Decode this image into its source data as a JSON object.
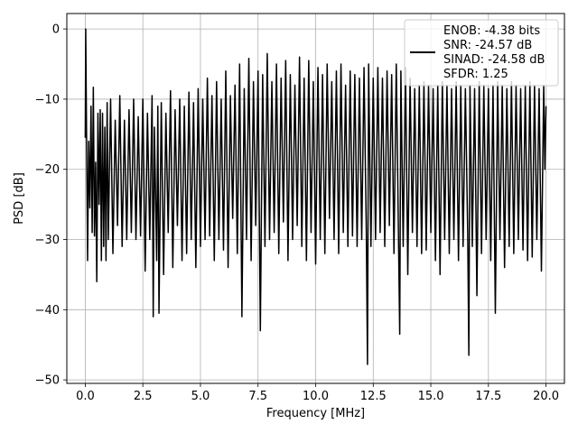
{
  "chart_data": {
    "type": "line",
    "title": "",
    "xlabel": "Frequency [MHz]",
    "ylabel": "PSD [dB]",
    "xlim": [
      -0.8,
      20.8
    ],
    "ylim": [
      -50.5,
      2.2
    ],
    "xticks": [
      0.0,
      2.5,
      5.0,
      7.5,
      10.0,
      12.5,
      15.0,
      17.5,
      20.0
    ],
    "xtick_labels": [
      "0.0",
      "2.5",
      "5.0",
      "7.5",
      "10.0",
      "12.5",
      "15.0",
      "17.5",
      "20.0"
    ],
    "yticks": [
      0,
      -10,
      -20,
      -30,
      -40,
      -50
    ],
    "ytick_labels": [
      "0",
      "−10",
      "−20",
      "−30",
      "−40",
      "−50"
    ],
    "grid": true,
    "line_color": "#000000",
    "legend": {
      "location": "upper right",
      "entries": [
        "ENOB: -4.38 bits",
        "SNR: -24.57 dB",
        "SINAD: -24.58 dB",
        "SFDR: 1.25"
      ]
    },
    "series": [
      {
        "points": [
          [
            0.0,
            -15.5
          ],
          [
            0.02,
            0.0
          ],
          [
            0.05,
            -12.5
          ],
          [
            0.1,
            -33.0
          ],
          [
            0.15,
            -16.0
          ],
          [
            0.2,
            -25.5
          ],
          [
            0.25,
            -11.0
          ],
          [
            0.3,
            -29.0
          ],
          [
            0.35,
            -8.3
          ],
          [
            0.4,
            -29.5
          ],
          [
            0.45,
            -19.0
          ],
          [
            0.5,
            -36.0
          ],
          [
            0.55,
            -12.0
          ],
          [
            0.6,
            -25.0
          ],
          [
            0.65,
            -11.5
          ],
          [
            0.7,
            -33.0
          ],
          [
            0.75,
            -12.0
          ],
          [
            0.8,
            -31.0
          ],
          [
            0.85,
            -14.0
          ],
          [
            0.9,
            -33.0
          ],
          [
            0.95,
            -10.5
          ],
          [
            1.0,
            -30.0
          ],
          [
            1.1,
            -10.0
          ],
          [
            1.2,
            -32.0
          ],
          [
            1.3,
            -13.0
          ],
          [
            1.4,
            -28.0
          ],
          [
            1.5,
            -9.5
          ],
          [
            1.6,
            -31.0
          ],
          [
            1.7,
            -13.0
          ],
          [
            1.8,
            -30.0
          ],
          [
            1.9,
            -11.5
          ],
          [
            2.0,
            -29.0
          ],
          [
            2.1,
            -10.0
          ],
          [
            2.2,
            -30.0
          ],
          [
            2.3,
            -12.5
          ],
          [
            2.4,
            -29.5
          ],
          [
            2.5,
            -10.0
          ],
          [
            2.6,
            -34.5
          ],
          [
            2.7,
            -12.0
          ],
          [
            2.8,
            -30.0
          ],
          [
            2.9,
            -9.5
          ],
          [
            2.95,
            -41.0
          ],
          [
            3.0,
            -14.0
          ],
          [
            3.1,
            -33.0
          ],
          [
            3.15,
            -11.0
          ],
          [
            3.2,
            -40.5
          ],
          [
            3.3,
            -10.5
          ],
          [
            3.4,
            -35.0
          ],
          [
            3.5,
            -12.0
          ],
          [
            3.6,
            -29.0
          ],
          [
            3.7,
            -8.8
          ],
          [
            3.8,
            -34.0
          ],
          [
            3.9,
            -11.5
          ],
          [
            4.0,
            -28.0
          ],
          [
            4.1,
            -10.0
          ],
          [
            4.2,
            -33.0
          ],
          [
            4.3,
            -11.0
          ],
          [
            4.4,
            -32.0
          ],
          [
            4.5,
            -9.0
          ],
          [
            4.6,
            -30.0
          ],
          [
            4.7,
            -10.5
          ],
          [
            4.8,
            -34.0
          ],
          [
            4.9,
            -8.5
          ],
          [
            5.0,
            -31.0
          ],
          [
            5.1,
            -10.0
          ],
          [
            5.2,
            -30.0
          ],
          [
            5.3,
            -7.0
          ],
          [
            5.4,
            -29.5
          ],
          [
            5.5,
            -9.5
          ],
          [
            5.6,
            -33.0
          ],
          [
            5.7,
            -7.5
          ],
          [
            5.8,
            -30.0
          ],
          [
            5.9,
            -10.0
          ],
          [
            6.0,
            -31.5
          ],
          [
            6.1,
            -6.0
          ],
          [
            6.2,
            -34.0
          ],
          [
            6.3,
            -9.5
          ],
          [
            6.4,
            -27.0
          ],
          [
            6.5,
            -8.0
          ],
          [
            6.6,
            -32.0
          ],
          [
            6.7,
            -5.0
          ],
          [
            6.8,
            -41.0
          ],
          [
            6.9,
            -8.5
          ],
          [
            7.0,
            -30.0
          ],
          [
            7.1,
            -4.2
          ],
          [
            7.2,
            -33.0
          ],
          [
            7.3,
            -7.5
          ],
          [
            7.4,
            -28.0
          ],
          [
            7.5,
            -6.0
          ],
          [
            7.6,
            -43.0
          ],
          [
            7.7,
            -6.5
          ],
          [
            7.8,
            -31.0
          ],
          [
            7.9,
            -3.5
          ],
          [
            8.0,
            -30.0
          ],
          [
            8.1,
            -7.5
          ],
          [
            8.2,
            -29.0
          ],
          [
            8.3,
            -5.0
          ],
          [
            8.4,
            -32.0
          ],
          [
            8.5,
            -7.0
          ],
          [
            8.6,
            -27.5
          ],
          [
            8.7,
            -4.5
          ],
          [
            8.8,
            -33.0
          ],
          [
            8.9,
            -6.5
          ],
          [
            9.0,
            -30.0
          ],
          [
            9.1,
            -8.0
          ],
          [
            9.2,
            -28.0
          ],
          [
            9.3,
            -4.0
          ],
          [
            9.4,
            -31.0
          ],
          [
            9.5,
            -7.0
          ],
          [
            9.6,
            -33.0
          ],
          [
            9.7,
            -4.5
          ],
          [
            9.8,
            -29.0
          ],
          [
            9.9,
            -7.5
          ],
          [
            10.0,
            -33.5
          ],
          [
            10.1,
            -5.5
          ],
          [
            10.2,
            -30.0
          ],
          [
            10.3,
            -6.5
          ],
          [
            10.4,
            -32.0
          ],
          [
            10.5,
            -5.0
          ],
          [
            10.6,
            -27.0
          ],
          [
            10.7,
            -7.5
          ],
          [
            10.8,
            -30.0
          ],
          [
            10.9,
            -6.0
          ],
          [
            11.0,
            -32.0
          ],
          [
            11.1,
            -5.0
          ],
          [
            11.2,
            -29.0
          ],
          [
            11.3,
            -8.0
          ],
          [
            11.4,
            -31.0
          ],
          [
            11.5,
            -6.0
          ],
          [
            11.6,
            -29.5
          ],
          [
            11.7,
            -6.5
          ],
          [
            11.8,
            -31.0
          ],
          [
            11.9,
            -7.0
          ],
          [
            12.0,
            -30.0
          ],
          [
            12.1,
            -5.5
          ],
          [
            12.2,
            -29.0
          ],
          [
            12.25,
            -47.8
          ],
          [
            12.3,
            -5.0
          ],
          [
            12.4,
            -31.0
          ],
          [
            12.5,
            -7.0
          ],
          [
            12.6,
            -30.0
          ],
          [
            12.7,
            -5.5
          ],
          [
            12.8,
            -29.0
          ],
          [
            12.9,
            -7.0
          ],
          [
            13.0,
            -31.0
          ],
          [
            13.1,
            -6.0
          ],
          [
            13.2,
            -28.0
          ],
          [
            13.3,
            -6.5
          ],
          [
            13.4,
            -32.0
          ],
          [
            13.5,
            -5.0
          ],
          [
            13.65,
            -43.5
          ],
          [
            13.7,
            -6.0
          ],
          [
            13.8,
            -31.0
          ],
          [
            13.9,
            -5.5
          ],
          [
            14.0,
            -35.0
          ],
          [
            14.1,
            -7.0
          ],
          [
            14.2,
            -29.0
          ],
          [
            14.3,
            -8.5
          ],
          [
            14.4,
            -31.0
          ],
          [
            14.5,
            -8.0
          ],
          [
            14.6,
            -32.0
          ],
          [
            14.7,
            -7.5
          ],
          [
            14.8,
            -31.5
          ],
          [
            14.9,
            -8.0
          ],
          [
            15.0,
            -29.0
          ],
          [
            15.1,
            -8.5
          ],
          [
            15.2,
            -33.0
          ],
          [
            15.3,
            -8.0
          ],
          [
            15.4,
            -35.0
          ],
          [
            15.5,
            -7.5
          ],
          [
            15.6,
            -30.0
          ],
          [
            15.7,
            -8.0
          ],
          [
            15.8,
            -32.0
          ],
          [
            15.9,
            -8.5
          ],
          [
            16.0,
            -30.0
          ],
          [
            16.1,
            -7.5
          ],
          [
            16.2,
            -33.0
          ],
          [
            16.3,
            -8.0
          ],
          [
            16.4,
            -31.0
          ],
          [
            16.5,
            -8.5
          ],
          [
            16.6,
            -29.0
          ],
          [
            16.65,
            -46.5
          ],
          [
            16.7,
            -8.0
          ],
          [
            16.8,
            -31.0
          ],
          [
            16.9,
            -8.5
          ],
          [
            17.0,
            -38.0
          ],
          [
            17.1,
            -7.5
          ],
          [
            17.2,
            -32.0
          ],
          [
            17.3,
            -8.0
          ],
          [
            17.4,
            -30.0
          ],
          [
            17.5,
            -8.5
          ],
          [
            17.6,
            -33.0
          ],
          [
            17.7,
            -8.0
          ],
          [
            17.8,
            -40.5
          ],
          [
            17.9,
            -7.5
          ],
          [
            18.0,
            -30.0
          ],
          [
            18.1,
            -8.0
          ],
          [
            18.2,
            -34.0
          ],
          [
            18.3,
            -8.5
          ],
          [
            18.4,
            -31.0
          ],
          [
            18.5,
            -7.5
          ],
          [
            18.6,
            -32.0
          ],
          [
            18.7,
            -8.0
          ],
          [
            18.8,
            -30.0
          ],
          [
            18.9,
            -8.5
          ],
          [
            19.0,
            -31.5
          ],
          [
            19.1,
            -8.0
          ],
          [
            19.2,
            -33.0
          ],
          [
            19.3,
            -7.5
          ],
          [
            19.4,
            -32.5
          ],
          [
            19.5,
            -8.0
          ],
          [
            19.6,
            -30.0
          ],
          [
            19.7,
            -8.5
          ],
          [
            19.8,
            -34.5
          ],
          [
            19.9,
            -8.0
          ],
          [
            19.95,
            -20.0
          ],
          [
            20.0,
            -11.0
          ]
        ]
      }
    ]
  }
}
